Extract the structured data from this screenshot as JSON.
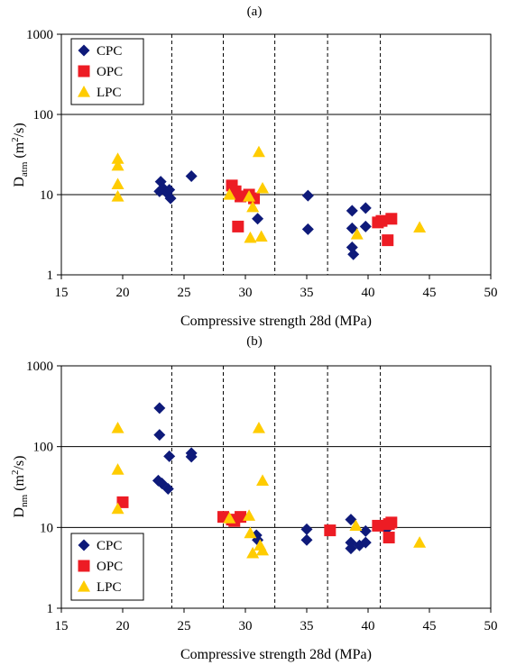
{
  "chart_data": [
    {
      "type": "scatter",
      "panel_label": "(a)",
      "title": "",
      "xlabel": "Compressive strength 28d (MPa)",
      "ylabel": {
        "base": "D",
        "subscript": "atm",
        "unit_open": " (m",
        "unit_sup": "2",
        "unit_close": "/s)"
      },
      "xlim": [
        15,
        50
      ],
      "ylim": [
        1,
        1000
      ],
      "yscale": "log",
      "xticks": [
        "15",
        "20",
        "25",
        "30",
        "35",
        "40",
        "45",
        "50"
      ],
      "yticks": [
        "1",
        "10",
        "100",
        "1000"
      ],
      "grid": {
        "horizontal": true,
        "horizontal_at": [
          10,
          100,
          1000
        ]
      },
      "dashed_vlines": [
        24,
        28.2,
        32.4,
        36.7,
        41
      ],
      "legend_position": "top-left",
      "series": [
        {
          "name": "CPC",
          "marker": "diamond",
          "color": "#0e1a7a",
          "points": [
            [
              23,
              11
            ],
            [
              23.1,
              14.5
            ],
            [
              23.3,
              12
            ],
            [
              23.6,
              10.5
            ],
            [
              23.8,
              11.5
            ],
            [
              23.9,
              9
            ],
            [
              25.6,
              17
            ],
            [
              31,
              5
            ],
            [
              35.1,
              9.7
            ],
            [
              35.1,
              3.7
            ],
            [
              38.7,
              6.3
            ],
            [
              38.7,
              3.8
            ],
            [
              38.7,
              2.2
            ],
            [
              38.8,
              1.8
            ],
            [
              39.8,
              6.8
            ],
            [
              39.8,
              4
            ]
          ]
        },
        {
          "name": "OPC",
          "marker": "square",
          "color": "#ed1c24",
          "points": [
            [
              28.9,
              13
            ],
            [
              29.2,
              11
            ],
            [
              29.6,
              9.5
            ],
            [
              30.3,
              10
            ],
            [
              30.7,
              9
            ],
            [
              29.4,
              4
            ],
            [
              40.8,
              4.5
            ],
            [
              41.1,
              4.7
            ],
            [
              41.9,
              5
            ],
            [
              41.6,
              2.7
            ]
          ]
        },
        {
          "name": "LPC",
          "marker": "triangle",
          "color": "#ffcc00",
          "points": [
            [
              19.6,
              28
            ],
            [
              19.6,
              23
            ],
            [
              19.6,
              13.5
            ],
            [
              19.6,
              9.5
            ],
            [
              28.7,
              10
            ],
            [
              30.3,
              9.5
            ],
            [
              30.4,
              2.9
            ],
            [
              30.6,
              7
            ],
            [
              31.1,
              34
            ],
            [
              31.3,
              3
            ],
            [
              31.4,
              12
            ],
            [
              39.1,
              3.2
            ],
            [
              44.2,
              3.9
            ]
          ]
        }
      ]
    },
    {
      "type": "scatter",
      "panel_label": "(b)",
      "title": "",
      "xlabel": "Compressive strength 28d (MPa)",
      "ylabel": {
        "base": "D",
        "subscript": "nm",
        "unit_open": " (m",
        "unit_sup": "2",
        "unit_close": "/s)"
      },
      "xlim": [
        15,
        50
      ],
      "ylim": [
        1,
        1000
      ],
      "yscale": "log",
      "xticks": [
        "15",
        "20",
        "25",
        "30",
        "35",
        "40",
        "45",
        "50"
      ],
      "yticks": [
        "1",
        "10",
        "100",
        "1000"
      ],
      "grid": {
        "horizontal": true,
        "horizontal_at": [
          10,
          100,
          1000
        ]
      },
      "dashed_vlines": [
        24,
        28.2,
        32.4,
        36.7,
        41
      ],
      "legend_position": "bottom-left",
      "series": [
        {
          "name": "CPC",
          "marker": "diamond",
          "color": "#0e1a7a",
          "points": [
            [
              23,
              300
            ],
            [
              23,
              140
            ],
            [
              22.9,
              38
            ],
            [
              23.2,
              35
            ],
            [
              23.7,
              30
            ],
            [
              23.8,
              76
            ],
            [
              25.6,
              83
            ],
            [
              25.6,
              75
            ],
            [
              30.9,
              8
            ],
            [
              31,
              7
            ],
            [
              35,
              9.5
            ],
            [
              35,
              7
            ],
            [
              38.6,
              12.5
            ],
            [
              38.6,
              6.5
            ],
            [
              38.6,
              5.5
            ],
            [
              39.3,
              6
            ],
            [
              39.8,
              9
            ],
            [
              39.8,
              6.5
            ],
            [
              41.5,
              9.5
            ]
          ]
        },
        {
          "name": "OPC",
          "marker": "square",
          "color": "#ed1c24",
          "points": [
            [
              20,
              20.5
            ],
            [
              28.2,
              13.5
            ],
            [
              28.9,
              12.5
            ],
            [
              29.1,
              12
            ],
            [
              29.6,
              13.5
            ],
            [
              36.9,
              9.2
            ],
            [
              40.8,
              10.5
            ],
            [
              41.7,
              11
            ],
            [
              41.9,
              11.5
            ],
            [
              41.7,
              7.5
            ]
          ]
        },
        {
          "name": "LPC",
          "marker": "triangle",
          "color": "#ffcc00",
          "points": [
            [
              19.6,
              170
            ],
            [
              19.6,
              52
            ],
            [
              19.6,
              17
            ],
            [
              28.7,
              13
            ],
            [
              30.3,
              14
            ],
            [
              30.4,
              8.5
            ],
            [
              30.6,
              4.8
            ],
            [
              31.1,
              170
            ],
            [
              31.2,
              6
            ],
            [
              31.4,
              5.2
            ],
            [
              31.4,
              38
            ],
            [
              39,
              10.5
            ],
            [
              44.2,
              6.5
            ]
          ]
        }
      ]
    }
  ]
}
